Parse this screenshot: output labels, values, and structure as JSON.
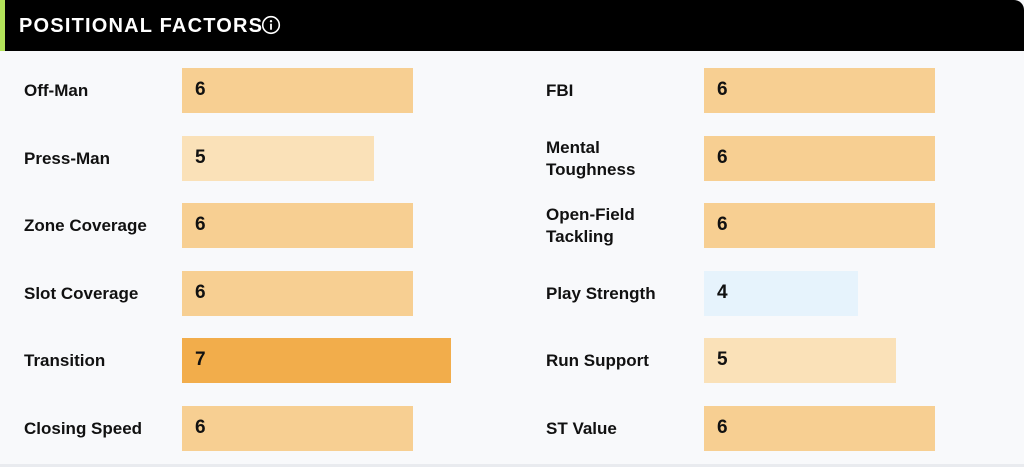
{
  "header": {
    "title": "POSITIONAL FACTORS",
    "info_icon": "info-circle-icon"
  },
  "scale": {
    "max": 7
  },
  "colors": {
    "score_7": "#f2ad4b",
    "score_6": "#f7cf92",
    "score_5": "#fae1b8",
    "score_4": "#e6f3fc"
  },
  "left_factors": [
    {
      "label": "Off-Man",
      "value": "6"
    },
    {
      "label": "Press-Man",
      "value": "5"
    },
    {
      "label": "Zone Coverage",
      "value": "6"
    },
    {
      "label": "Slot Coverage",
      "value": "6"
    },
    {
      "label": "Transition",
      "value": "7"
    },
    {
      "label": "Closing Speed",
      "value": "6"
    }
  ],
  "right_factors": [
    {
      "label": "FBI",
      "value": "6"
    },
    {
      "label": "Mental Toughness",
      "value": "6"
    },
    {
      "label": "Open-Field Tackling",
      "value": "6"
    },
    {
      "label": "Play Strength",
      "value": "4"
    },
    {
      "label": "Run Support",
      "value": "5"
    },
    {
      "label": "ST Value",
      "value": "6"
    }
  ]
}
